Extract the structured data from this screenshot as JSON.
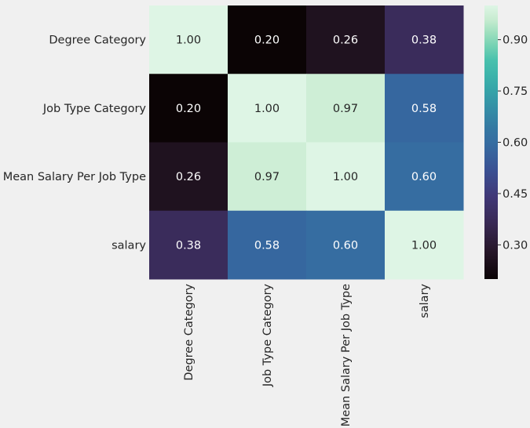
{
  "chart_data": {
    "type": "heatmap",
    "title": "",
    "rows": [
      "Degree Category",
      "Job Type Category",
      "Mean Salary Per Job Type",
      "salary"
    ],
    "columns": [
      "Degree Category",
      "Job Type Category",
      "Mean Salary Per Job Type",
      "salary"
    ],
    "values": [
      [
        1.0,
        0.2,
        0.26,
        0.38
      ],
      [
        0.2,
        1.0,
        0.97,
        0.58
      ],
      [
        0.26,
        0.97,
        1.0,
        0.6
      ],
      [
        0.38,
        0.58,
        0.6,
        1.0
      ]
    ],
    "value_labels": [
      [
        "1.00",
        "0.20",
        "0.26",
        "0.38"
      ],
      [
        "0.20",
        "1.00",
        "0.97",
        "0.58"
      ],
      [
        "0.26",
        "0.97",
        "1.00",
        "0.60"
      ],
      [
        "0.38",
        "0.58",
        "0.60",
        "1.00"
      ]
    ],
    "colormap": "mako",
    "color_range": [
      0.2,
      1.0
    ],
    "colorbar_ticks": [
      0.3,
      0.45,
      0.6,
      0.75,
      0.9
    ],
    "colorbar_tick_labels": [
      "0.30",
      "0.45",
      "0.60",
      "0.75",
      "0.90"
    ],
    "grid": false,
    "colors": {
      "background": "#f0f0f0",
      "text": "#262626"
    }
  }
}
